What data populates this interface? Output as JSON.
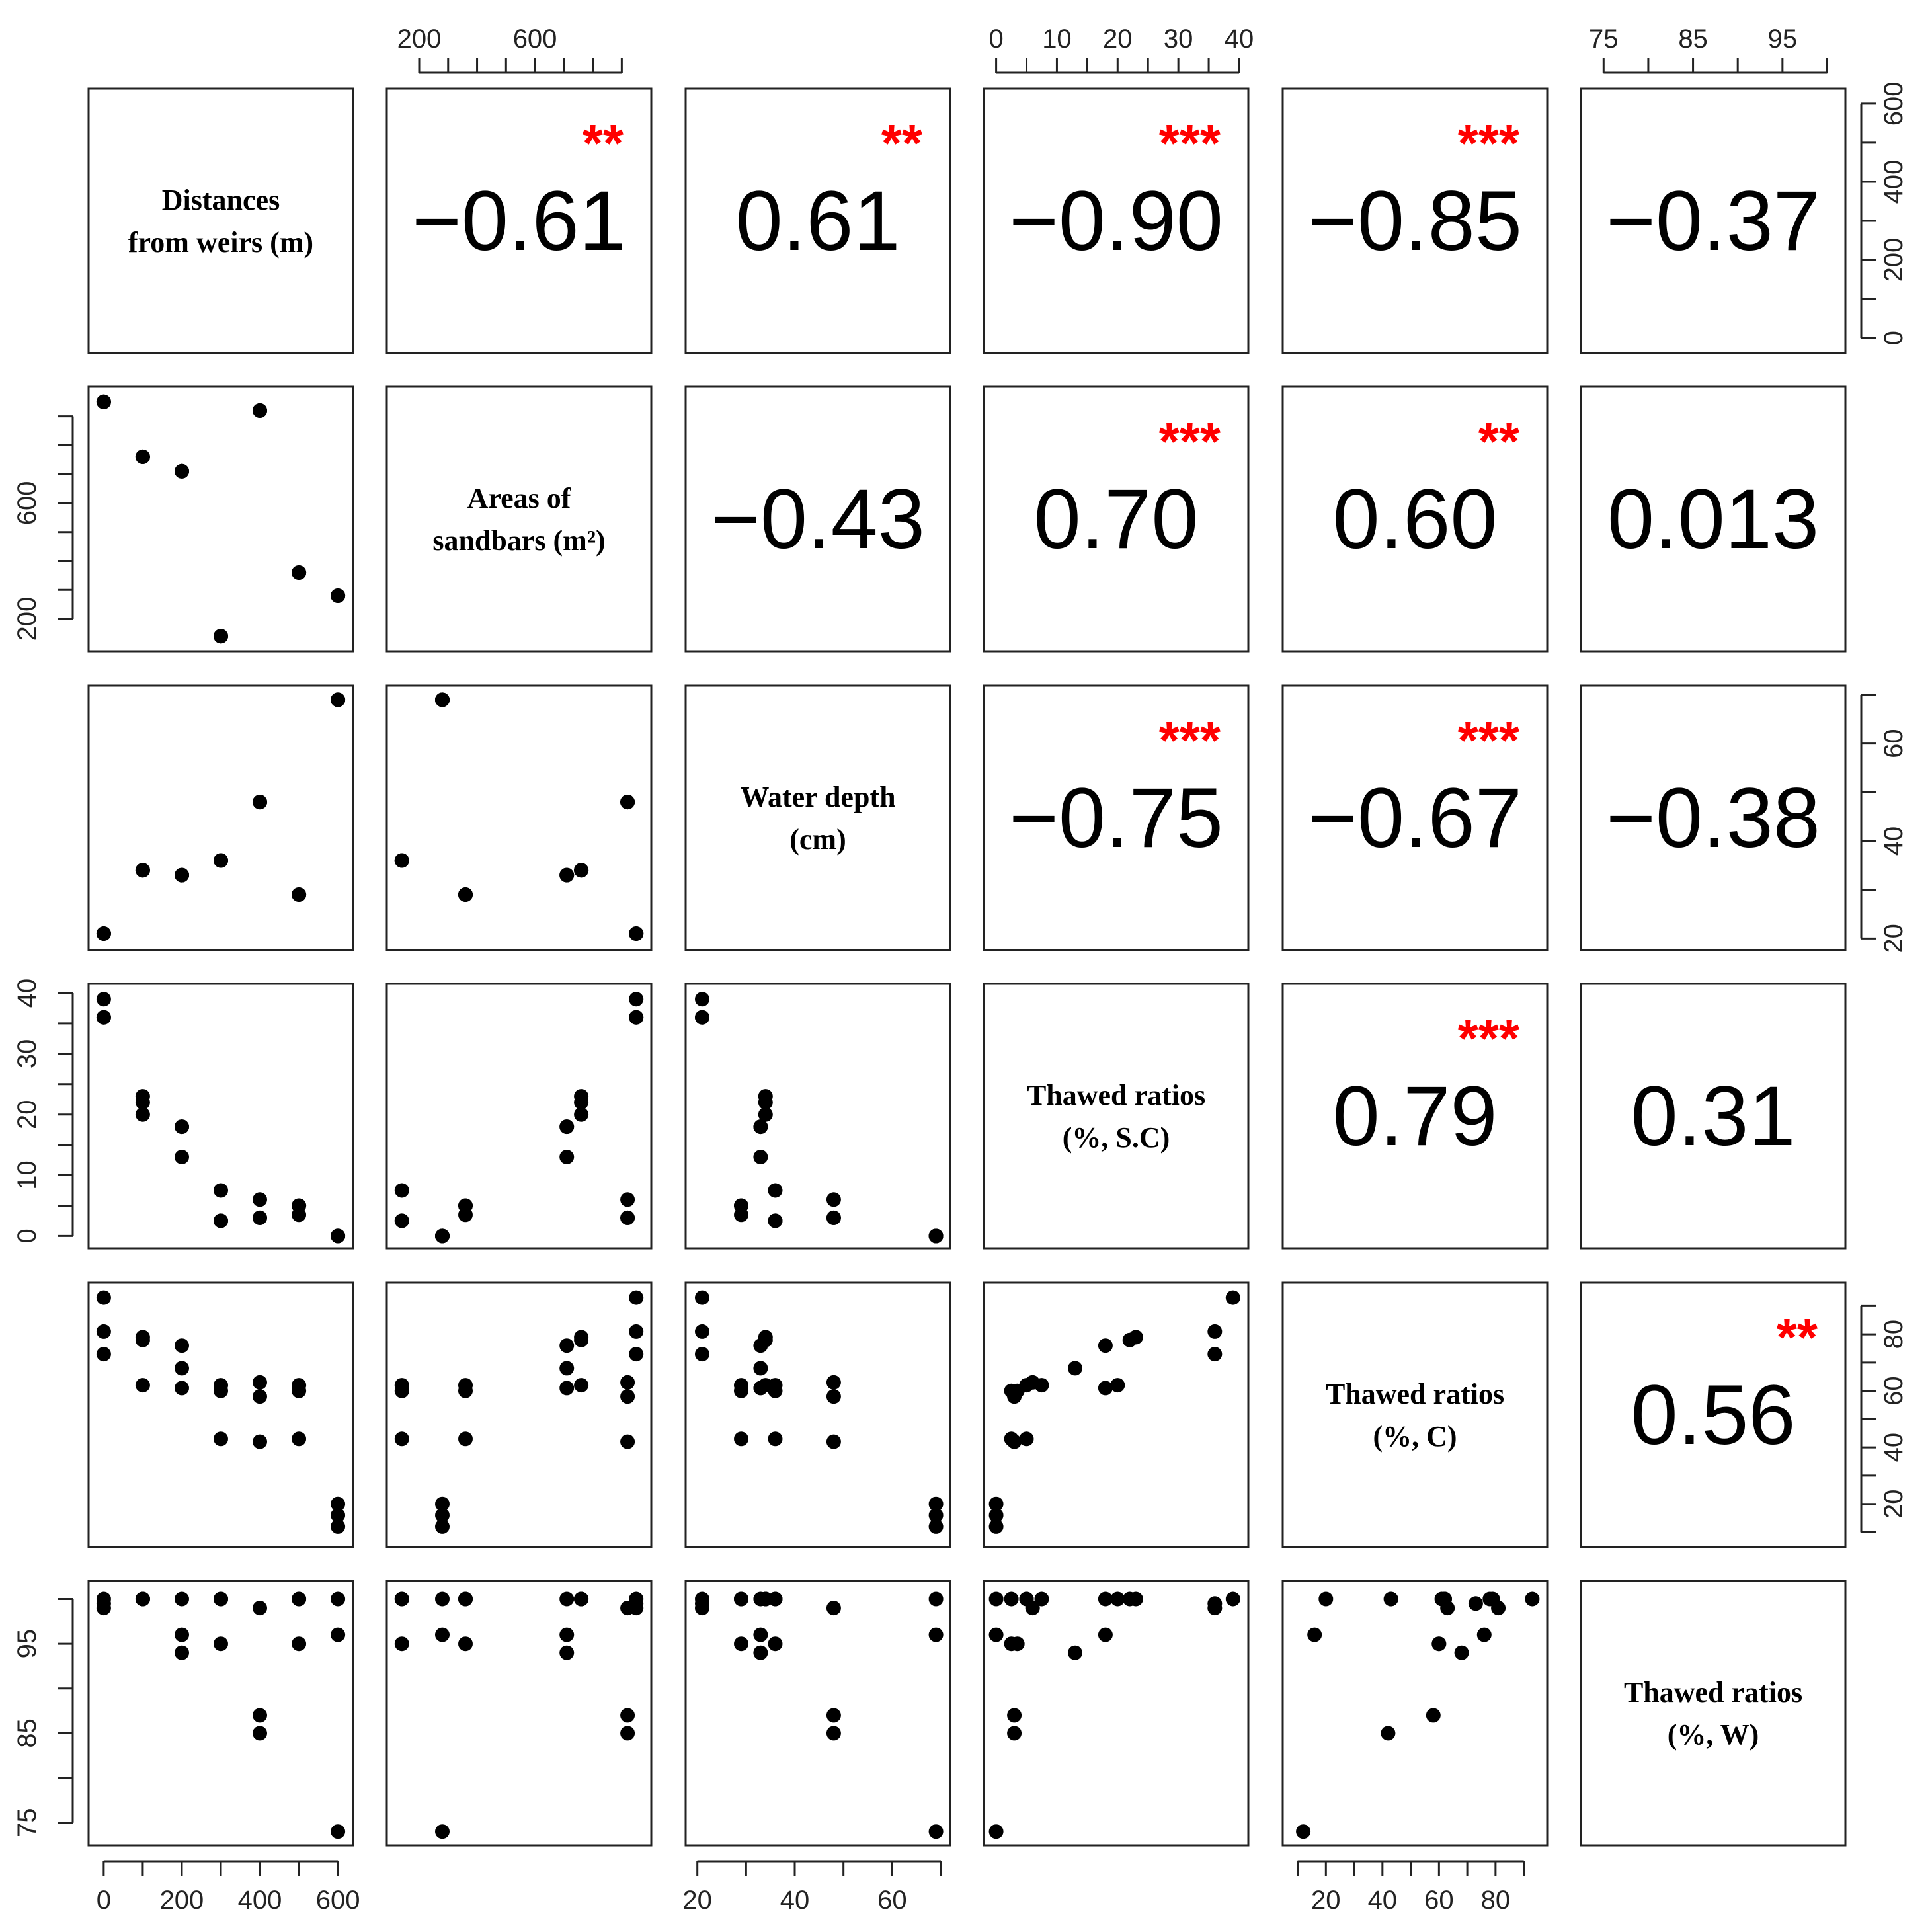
{
  "chart_data": {
    "type": "scatter",
    "variables": [
      {
        "label_lines": [
          "Distances",
          "from weirs (m)"
        ],
        "lim": [
          -15,
          615
        ],
        "ticks": [
          0,
          200,
          400,
          600
        ],
        "tick_labels": [
          "0",
          "200",
          "400",
          "600"
        ],
        "minor_step": 100
      },
      {
        "label_lines": [
          "Areas of",
          "sandbars (m²)"
        ],
        "lim": [
          120,
          970
        ],
        "ticks": [
          200,
          600
        ],
        "tick_labels": [
          "200",
          "600"
        ],
        "minor_step": 100
      },
      {
        "label_lines": [
          "Water depth",
          "(cm)"
        ],
        "lim": [
          19.5,
          70
        ],
        "ticks": [
          20,
          40,
          60
        ],
        "tick_labels": [
          "20",
          "40",
          "60"
        ],
        "minor_step": 10
      },
      {
        "label_lines": [
          "Thawed ratios",
          "(%, S.C)"
        ],
        "lim": [
          -0.5,
          40
        ],
        "ticks": [
          0,
          10,
          20,
          30,
          40
        ],
        "tick_labels": [
          "0",
          "10",
          "20",
          "30",
          "40"
        ],
        "minor_step": 5
      },
      {
        "label_lines": [
          "Thawed ratios",
          "(%, C)"
        ],
        "lim": [
          8,
          95
        ],
        "ticks": [
          20,
          40,
          60,
          80
        ],
        "tick_labels": [
          "20",
          "40",
          "60",
          "80"
        ],
        "minor_step": 10
      },
      {
        "label_lines": [
          "Thawed ratios",
          "(%, W)"
        ],
        "lim": [
          73.5,
          101
        ],
        "ticks": [
          75,
          85,
          95
        ],
        "tick_labels": [
          "75",
          "85",
          "95"
        ],
        "minor_step": 5
      }
    ],
    "correlations": [
      {
        "row": 0,
        "col": 1,
        "r": "−0.61",
        "stars": "**"
      },
      {
        "row": 0,
        "col": 2,
        "r": "0.61",
        "stars": "**"
      },
      {
        "row": 0,
        "col": 3,
        "r": "−0.90",
        "stars": "***"
      },
      {
        "row": 0,
        "col": 4,
        "r": "−0.85",
        "stars": "***"
      },
      {
        "row": 0,
        "col": 5,
        "r": "−0.37",
        "stars": ""
      },
      {
        "row": 1,
        "col": 2,
        "r": "−0.43",
        "stars": ""
      },
      {
        "row": 1,
        "col": 3,
        "r": "0.70",
        "stars": "***"
      },
      {
        "row": 1,
        "col": 4,
        "r": "0.60",
        "stars": "**"
      },
      {
        "row": 1,
        "col": 5,
        "r": "0.013",
        "stars": ""
      },
      {
        "row": 2,
        "col": 3,
        "r": "−0.75",
        "stars": "***"
      },
      {
        "row": 2,
        "col": 4,
        "r": "−0.67",
        "stars": "***"
      },
      {
        "row": 2,
        "col": 5,
        "r": "−0.38",
        "stars": ""
      },
      {
        "row": 3,
        "col": 4,
        "r": "0.79",
        "stars": "***"
      },
      {
        "row": 3,
        "col": 5,
        "r": "0.31",
        "stars": ""
      },
      {
        "row": 4,
        "col": 5,
        "r": "0.56",
        "stars": "**"
      }
    ],
    "observations": [
      [
        0,
        950,
        21,
        39,
        93,
        100
      ],
      [
        0,
        950,
        21,
        36,
        81,
        99
      ],
      [
        0,
        950,
        21,
        36,
        73,
        99.5
      ],
      [
        100,
        760,
        34,
        23,
        79,
        100
      ],
      [
        100,
        760,
        34,
        22,
        78,
        100
      ],
      [
        100,
        760,
        34,
        20,
        62,
        100
      ],
      [
        200,
        710,
        33,
        18,
        76,
        96
      ],
      [
        200,
        710,
        33,
        13,
        68,
        94
      ],
      [
        200,
        710,
        33,
        18,
        61,
        100
      ],
      [
        300,
        140,
        36,
        7.5,
        62,
        100
      ],
      [
        300,
        140,
        36,
        2.5,
        60,
        95
      ],
      [
        300,
        140,
        36,
        2.5,
        43,
        100
      ],
      [
        400,
        920,
        48,
        6,
        63,
        99
      ],
      [
        400,
        920,
        48,
        3,
        58,
        87
      ],
      [
        400,
        920,
        48,
        3,
        42,
        85
      ],
      [
        500,
        360,
        29,
        5,
        62,
        100
      ],
      [
        500,
        360,
        29,
        3.5,
        60,
        95
      ],
      [
        500,
        360,
        29,
        5,
        43,
        100
      ],
      [
        600,
        280,
        69,
        0,
        20,
        100
      ],
      [
        600,
        280,
        69,
        0,
        16,
        96
      ],
      [
        600,
        280,
        69,
        0,
        12,
        74
      ]
    ]
  }
}
